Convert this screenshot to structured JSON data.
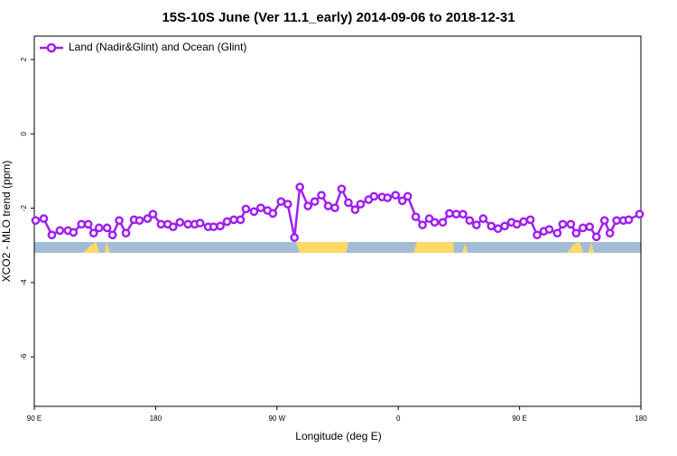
{
  "chart_data": {
    "type": "line",
    "title": "15S-10S June (Ver 11.1_early)   2014-09-06 to 2018-12-31",
    "x_label": "Longitude (deg E)",
    "y_label": "XCO2 - MLO trend (ppm)",
    "xlim": [
      90,
      540
    ],
    "ylim": [
      -7.33,
      2.63
    ],
    "xticks": [
      {
        "value": 90,
        "label": "90 E"
      },
      180,
      {
        "value": 270,
        "label": "90 W"
      },
      {
        "value": 360,
        "label": "0"
      },
      {
        "value": 450,
        "label": "90 E"
      },
      {
        "value": 540,
        "label": "180"
      }
    ],
    "yticks": [
      2,
      0,
      -2,
      -4,
      -6
    ],
    "legend": "top-left",
    "series": [
      {
        "name": "Land (Nadir&Glint) and Ocean (Glint)",
        "color": "#a020f0",
        "x": [
          91,
          97,
          103,
          109,
          115,
          119,
          125,
          130,
          134,
          138,
          144,
          148,
          153,
          158,
          164,
          168,
          174,
          178,
          184,
          189,
          193,
          198,
          204,
          209,
          213,
          219,
          223,
          228,
          233,
          238,
          243,
          247,
          253,
          258,
          263,
          267,
          273,
          278,
          283,
          287,
          293,
          298,
          303,
          308,
          313,
          318,
          323,
          328,
          332,
          338,
          342,
          348,
          352,
          358,
          363,
          367,
          373,
          378,
          383,
          387,
          393,
          398,
          403,
          408,
          413,
          418,
          423,
          429,
          434,
          439,
          444,
          448,
          453,
          458,
          463,
          468,
          472,
          478,
          482,
          488,
          492,
          497,
          502,
          507,
          513,
          517,
          522,
          527,
          531,
          539
        ],
        "values": [
          -2.33,
          -2.28,
          -2.72,
          -2.6,
          -2.6,
          -2.65,
          -2.43,
          -2.43,
          -2.67,
          -2.53,
          -2.53,
          -2.72,
          -2.33,
          -2.67,
          -2.31,
          -2.33,
          -2.28,
          -2.16,
          -2.43,
          -2.43,
          -2.5,
          -2.38,
          -2.43,
          -2.43,
          -2.4,
          -2.5,
          -2.5,
          -2.48,
          -2.36,
          -2.31,
          -2.31,
          -2.02,
          -2.09,
          -1.99,
          -2.06,
          -2.14,
          -1.82,
          -1.89,
          -2.79,
          -1.43,
          -1.94,
          -1.82,
          -1.65,
          -1.94,
          -1.99,
          -1.48,
          -1.85,
          -2.04,
          -1.89,
          -1.77,
          -1.68,
          -1.7,
          -1.72,
          -1.65,
          -1.8,
          -1.68,
          -2.23,
          -2.45,
          -2.28,
          -2.38,
          -2.38,
          -2.14,
          -2.16,
          -2.16,
          -2.33,
          -2.45,
          -2.28,
          -2.48,
          -2.55,
          -2.48,
          -2.38,
          -2.43,
          -2.36,
          -2.31,
          -2.72,
          -2.62,
          -2.57,
          -2.67,
          -2.43,
          -2.43,
          -2.67,
          -2.53,
          -2.5,
          -2.77,
          -2.33,
          -2.67,
          -2.33,
          -2.33,
          -2.31,
          -2.16
        ]
      }
    ]
  }
}
